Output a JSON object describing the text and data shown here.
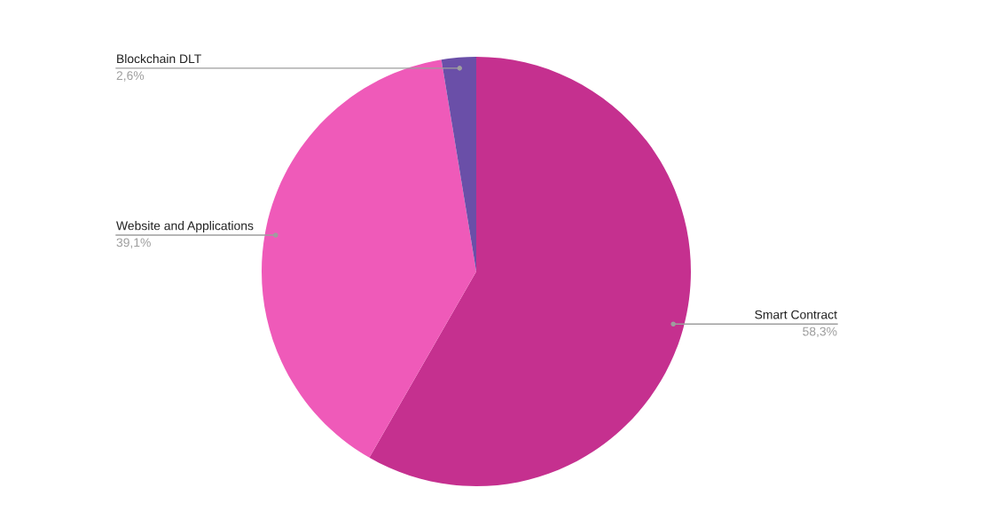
{
  "chart_data": {
    "type": "pie",
    "categories": [
      "Smart Contract",
      "Website and Applications",
      "Blockchain DLT"
    ],
    "values": [
      58.3,
      39.1,
      2.6
    ],
    "value_labels": [
      "58,3%",
      "39,1%",
      "2,6%"
    ],
    "colors": [
      "#c5308f",
      "#ef5ab9",
      "#6a4fa8"
    ],
    "legend": false
  }
}
